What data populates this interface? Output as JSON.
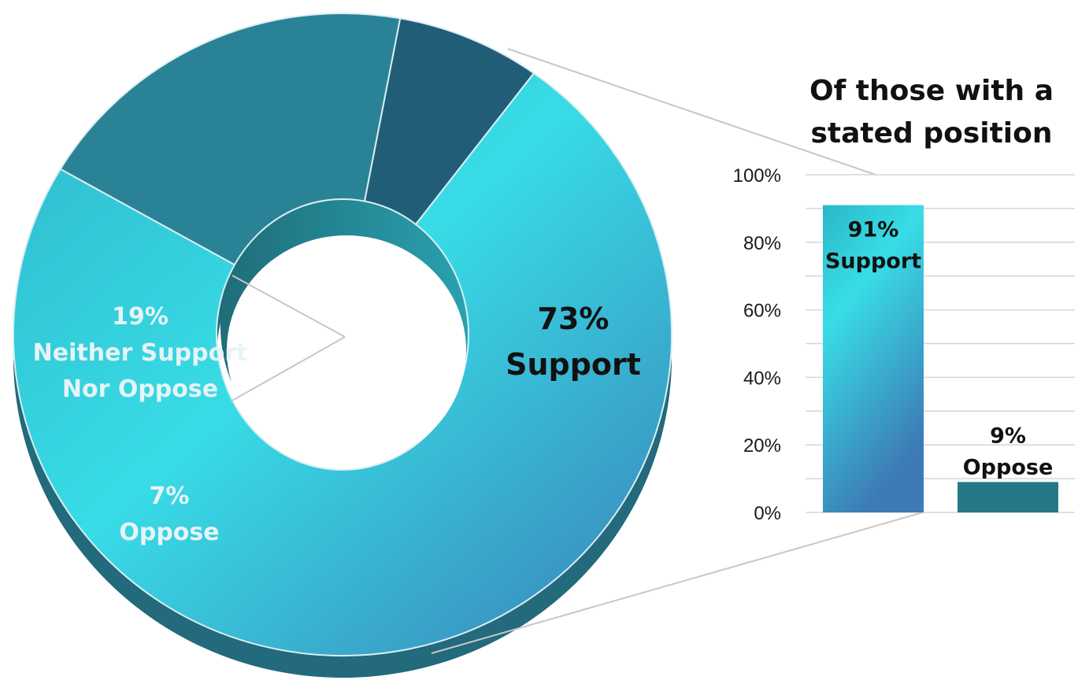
{
  "chart_data": [
    {
      "type": "pie",
      "variant": "donut",
      "slices": [
        {
          "label": "Support",
          "value": 73,
          "value_label": "73%",
          "color": "#35c6d6"
        },
        {
          "label": "Neither Support Nor Oppose",
          "value": 19,
          "value_label": "19%",
          "color": "#2a8296"
        },
        {
          "label": "Oppose",
          "value": 7,
          "value_label": "7%",
          "color": "#225d78"
        }
      ]
    },
    {
      "type": "bar",
      "title": "Of those with a stated position",
      "categories": [
        "Support",
        "Oppose"
      ],
      "values": [
        91,
        9
      ],
      "data_labels": [
        "91%",
        "9%"
      ],
      "colors": [
        "#30bccf",
        "#257887"
      ],
      "ylim": [
        0,
        100
      ],
      "ytick_labels": [
        "0%",
        "20%",
        "40%",
        "60%",
        "80%",
        "100%"
      ],
      "grid": true
    }
  ]
}
